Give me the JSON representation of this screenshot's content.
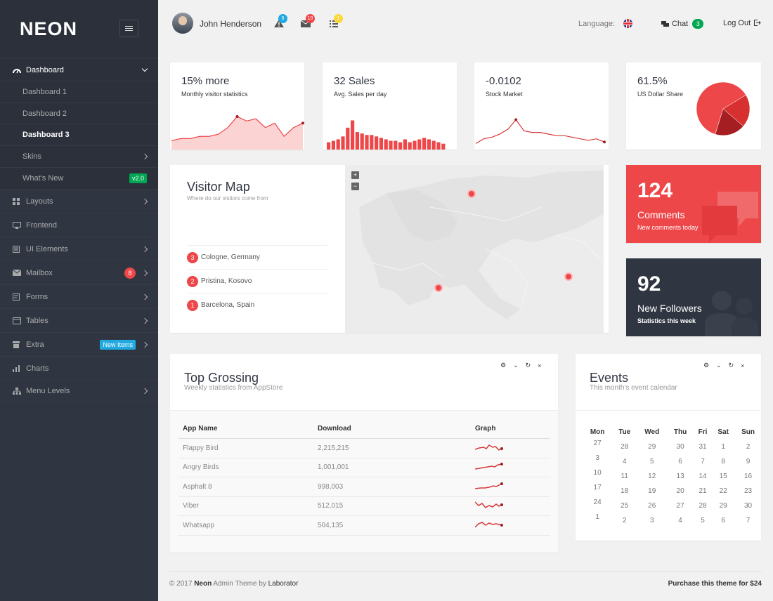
{
  "brand": {
    "logo": "NEON"
  },
  "sidebar": {
    "items": [
      {
        "label": "Dashboard",
        "icon": "gauge-icon"
      },
      {
        "label": "Dashboard 1"
      },
      {
        "label": "Dashboard 2"
      },
      {
        "label": "Dashboard 3"
      },
      {
        "label": "Skins"
      },
      {
        "label": "What's New",
        "badge": "v2.0"
      },
      {
        "label": "Layouts",
        "icon": "layout-icon"
      },
      {
        "label": "Frontend",
        "icon": "monitor-icon"
      },
      {
        "label": "UI Elements",
        "icon": "ui-elements-icon"
      },
      {
        "label": "Mailbox",
        "icon": "mail-icon",
        "badge": "8"
      },
      {
        "label": "Forms",
        "icon": "forms-icon"
      },
      {
        "label": "Tables",
        "icon": "table-icon"
      },
      {
        "label": "Extra",
        "icon": "extra-icon",
        "badge": "New Items"
      },
      {
        "label": "Charts",
        "icon": "bar-chart-icon"
      },
      {
        "label": "Menu Levels",
        "icon": "sitemap-icon"
      }
    ]
  },
  "header": {
    "user": "John Henderson",
    "alerts": "6",
    "messages": "10",
    "tasks": "1",
    "language_label": "Language:",
    "chat_label": "Chat",
    "chat_count": "3",
    "logout_label": "Log Out"
  },
  "stats": [
    {
      "value": "15% more",
      "label": "Monthly visitor statistics"
    },
    {
      "value": "32 Sales",
      "label": "Avg. Sales per day"
    },
    {
      "value": "-0.0102",
      "label": "Stock Market"
    },
    {
      "value": "61.5%",
      "label": "US Dollar Share"
    }
  ],
  "visitor_map": {
    "title": "Visitor Map",
    "subtitle": "Where do our visitors come from",
    "locations": [
      {
        "rank": "3",
        "name": "Cologne, Germany"
      },
      {
        "rank": "2",
        "name": "Pristina, Kosovo"
      },
      {
        "rank": "1",
        "name": "Barcelona, Spain"
      }
    ],
    "zoom_in": "+",
    "zoom_out": "−"
  },
  "tiles": {
    "comments": {
      "count": "124",
      "title": "Comments",
      "subtitle": "New comments today",
      "color": "#ee4749"
    },
    "followers": {
      "count": "92",
      "title": "New Followers",
      "subtitle": "Statistics this week",
      "color": "#303641"
    }
  },
  "top_grossing": {
    "title": "Top Grossing",
    "subtitle": "Weekly statistics from AppStore",
    "columns": [
      "App Name",
      "Download",
      "Graph"
    ],
    "rows": [
      {
        "app": "Flappy Bird",
        "download": "2,215,215"
      },
      {
        "app": "Angry Birds",
        "download": "1,001,001"
      },
      {
        "app": "Asphalt 8",
        "download": "998,003"
      },
      {
        "app": "Viber",
        "download": "512,015"
      },
      {
        "app": "Whatsapp",
        "download": "504,135"
      }
    ]
  },
  "events": {
    "title": "Events",
    "subtitle": "This month's event calendar",
    "days": [
      "Mon",
      "Tue",
      "Wed",
      "Thu",
      "Fri",
      "Sat",
      "Sun"
    ],
    "weeks": [
      [
        "27",
        "28",
        "29",
        "30",
        "31",
        "1",
        "2"
      ],
      [
        "3",
        "4",
        "5",
        "6",
        "7",
        "8",
        "9"
      ],
      [
        "10",
        "11",
        "12",
        "13",
        "14",
        "15",
        "16"
      ],
      [
        "17",
        "18",
        "19",
        "20",
        "21",
        "22",
        "23"
      ],
      [
        "24",
        "25",
        "26",
        "27",
        "28",
        "29",
        "30"
      ],
      [
        "1",
        "2",
        "3",
        "4",
        "5",
        "6",
        "7"
      ]
    ]
  },
  "footer": {
    "copyright": "© 2017",
    "brand": "Neon",
    "rest": "Admin Theme by",
    "author": "Laborator",
    "purchase": "Purchase this theme for $24"
  },
  "chart_data": [
    {
      "type": "area",
      "name": "visitors",
      "values": [
        4,
        5,
        5,
        6,
        6,
        7,
        10,
        15,
        13,
        14,
        10,
        12,
        6,
        10,
        12
      ],
      "color": "#ee4749"
    },
    {
      "type": "bar",
      "name": "sales",
      "values": [
        5,
        6,
        7,
        9,
        15,
        20,
        12,
        11,
        10,
        10,
        9,
        8,
        7,
        6,
        6,
        5,
        7,
        5,
        6,
        7,
        8,
        7,
        6,
        5,
        4
      ],
      "color": "#ee4749"
    },
    {
      "type": "line",
      "name": "stock",
      "values": [
        2,
        5,
        6,
        8,
        11,
        17,
        10,
        9,
        9,
        8,
        7,
        7,
        6,
        5,
        4,
        5,
        3
      ],
      "color": "#d7383b"
    },
    {
      "type": "pie",
      "name": "usd-share",
      "values": [
        61.5,
        20,
        18.5
      ],
      "colors": [
        "#ee4749",
        "#d63031",
        "#a51e22"
      ]
    }
  ]
}
